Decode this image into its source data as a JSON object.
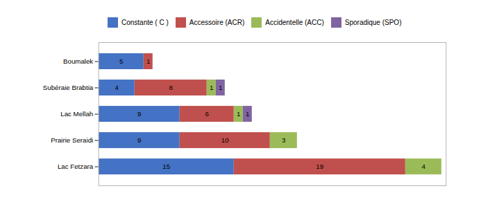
{
  "chart_data": {
    "type": "bar",
    "orientation": "horizontal",
    "stacked": true,
    "data_labels": true,
    "legend": "upper left",
    "tick_labels": "y",
    "grid": false,
    "categories": [
      "Lac Fetzara",
      "Prairie Seraidi",
      "Lac Mellah",
      "Subéraie Brabtia",
      "Boumalek"
    ],
    "series": [
      {
        "name": "Constante ( C )",
        "color": "#4472C4",
        "values": [
          15,
          9,
          9,
          4,
          5
        ]
      },
      {
        "name": "Accessoire (ACR)",
        "color": "#C0504D",
        "values": [
          19,
          10,
          6,
          8,
          1
        ]
      },
      {
        "name": "Accidentelle (ACC)",
        "color": "#9BBB59",
        "values": [
          4,
          3,
          1,
          1,
          0
        ]
      },
      {
        "name": "Sporadique (SPO)",
        "color": "#8064A2",
        "values": [
          0,
          0,
          1,
          1,
          0
        ]
      }
    ],
    "xlim": [
      0,
      38.5
    ]
  }
}
